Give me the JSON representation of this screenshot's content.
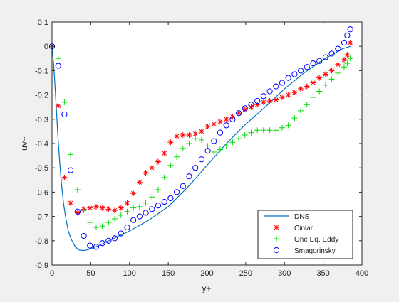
{
  "chart_data": {
    "type": "line",
    "title": "",
    "xlabel": "y+",
    "ylabel": "uv+",
    "xlim": [
      0,
      400
    ],
    "ylim": [
      -0.9,
      0.1
    ],
    "xticks": [
      0,
      50,
      100,
      150,
      200,
      250,
      300,
      350,
      400
    ],
    "yticks": [
      -0.9,
      -0.8,
      -0.7,
      -0.6,
      -0.5,
      -0.4,
      -0.3,
      -0.2,
      -0.1,
      0,
      0.1
    ],
    "xtick_labels": [
      "0",
      "50",
      "100",
      "150",
      "200",
      "250",
      "300",
      "350",
      "400"
    ],
    "ytick_labels": [
      "-0.9",
      "-0.8",
      "-0.7",
      "-0.6",
      "-0.5",
      "-0.4",
      "-0.3",
      "-0.2",
      "-0.1",
      "0",
      "0.1"
    ],
    "grid": false,
    "legend_position": "bottom-right",
    "series": [
      {
        "name": "DNS",
        "style": "line",
        "color": "#0072bd",
        "x": [
          0,
          2,
          4,
          6,
          8,
          10,
          12,
          15,
          18,
          21,
          25,
          30,
          35,
          40,
          45,
          50,
          60,
          70,
          80,
          100,
          125,
          150,
          175,
          200,
          225,
          250,
          275,
          300,
          325,
          350,
          375,
          385
        ],
        "y": [
          0,
          -0.07,
          -0.17,
          -0.28,
          -0.39,
          -0.48,
          -0.56,
          -0.65,
          -0.71,
          -0.76,
          -0.795,
          -0.825,
          -0.838,
          -0.84,
          -0.838,
          -0.833,
          -0.82,
          -0.805,
          -0.79,
          -0.76,
          -0.715,
          -0.66,
          -0.58,
          -0.49,
          -0.4,
          -0.32,
          -0.25,
          -0.175,
          -0.11,
          -0.055,
          -0.01,
          0.0
        ]
      },
      {
        "name": "Cinlar",
        "style": "marker",
        "marker": "asterisk",
        "color": "#ff0000",
        "x": [
          0,
          8,
          16,
          24,
          33,
          41,
          49,
          57,
          65,
          73,
          81,
          89,
          97,
          105,
          113,
          121,
          129,
          137,
          145,
          153,
          161,
          169,
          177,
          185,
          193,
          201,
          209,
          217,
          225,
          233,
          241,
          249,
          257,
          265,
          273,
          281,
          289,
          297,
          305,
          313,
          321,
          329,
          337,
          345,
          353,
          361,
          369,
          377,
          381,
          385
        ],
        "y": [
          0,
          -0.245,
          -0.54,
          -0.645,
          -0.685,
          -0.67,
          -0.665,
          -0.66,
          -0.665,
          -0.67,
          -0.675,
          -0.665,
          -0.645,
          -0.605,
          -0.56,
          -0.52,
          -0.5,
          -0.475,
          -0.44,
          -0.395,
          -0.37,
          -0.365,
          -0.365,
          -0.36,
          -0.35,
          -0.33,
          -0.32,
          -0.31,
          -0.3,
          -0.29,
          -0.275,
          -0.26,
          -0.25,
          -0.24,
          -0.23,
          -0.225,
          -0.22,
          -0.21,
          -0.2,
          -0.19,
          -0.175,
          -0.165,
          -0.15,
          -0.13,
          -0.115,
          -0.1,
          -0.075,
          -0.055,
          -0.035,
          0.015
        ]
      },
      {
        "name": "One Eq. Eddy",
        "style": "marker",
        "marker": "plus",
        "color": "#00dd00",
        "x": [
          0,
          8,
          16,
          24,
          33,
          41,
          49,
          57,
          65,
          73,
          81,
          89,
          97,
          105,
          113,
          121,
          129,
          137,
          145,
          153,
          161,
          169,
          177,
          185,
          193,
          201,
          209,
          217,
          225,
          233,
          241,
          249,
          257,
          265,
          273,
          281,
          289,
          297,
          305,
          313,
          321,
          329,
          337,
          345,
          353,
          361,
          369,
          377,
          381,
          385
        ],
        "y": [
          0,
          -0.05,
          -0.23,
          -0.445,
          -0.59,
          -0.675,
          -0.725,
          -0.745,
          -0.74,
          -0.725,
          -0.71,
          -0.695,
          -0.68,
          -0.665,
          -0.66,
          -0.645,
          -0.62,
          -0.59,
          -0.54,
          -0.49,
          -0.455,
          -0.42,
          -0.4,
          -0.38,
          -0.385,
          -0.41,
          -0.435,
          -0.425,
          -0.41,
          -0.395,
          -0.38,
          -0.365,
          -0.355,
          -0.345,
          -0.345,
          -0.345,
          -0.345,
          -0.335,
          -0.325,
          -0.295,
          -0.265,
          -0.24,
          -0.21,
          -0.185,
          -0.16,
          -0.135,
          -0.11,
          -0.085,
          -0.07,
          -0.05
        ]
      },
      {
        "name": "Smagorinsky",
        "style": "marker",
        "marker": "circle",
        "color": "#0000ff",
        "x": [
          0,
          8,
          16,
          24,
          33,
          41,
          49,
          57,
          65,
          73,
          81,
          89,
          97,
          105,
          113,
          121,
          129,
          137,
          145,
          153,
          161,
          169,
          177,
          185,
          193,
          201,
          209,
          217,
          225,
          233,
          241,
          249,
          257,
          265,
          273,
          281,
          289,
          297,
          305,
          313,
          321,
          329,
          337,
          345,
          353,
          361,
          369,
          377,
          381,
          385
        ],
        "y": [
          0,
          -0.08,
          -0.28,
          -0.51,
          -0.68,
          -0.78,
          -0.82,
          -0.825,
          -0.81,
          -0.8,
          -0.79,
          -0.77,
          -0.745,
          -0.715,
          -0.7,
          -0.685,
          -0.67,
          -0.655,
          -0.64,
          -0.625,
          -0.6,
          -0.575,
          -0.535,
          -0.5,
          -0.465,
          -0.43,
          -0.39,
          -0.355,
          -0.325,
          -0.3,
          -0.275,
          -0.255,
          -0.24,
          -0.225,
          -0.205,
          -0.185,
          -0.165,
          -0.15,
          -0.13,
          -0.115,
          -0.1,
          -0.085,
          -0.07,
          -0.06,
          -0.045,
          -0.03,
          -0.01,
          0.015,
          0.045,
          0.07
        ]
      }
    ]
  }
}
